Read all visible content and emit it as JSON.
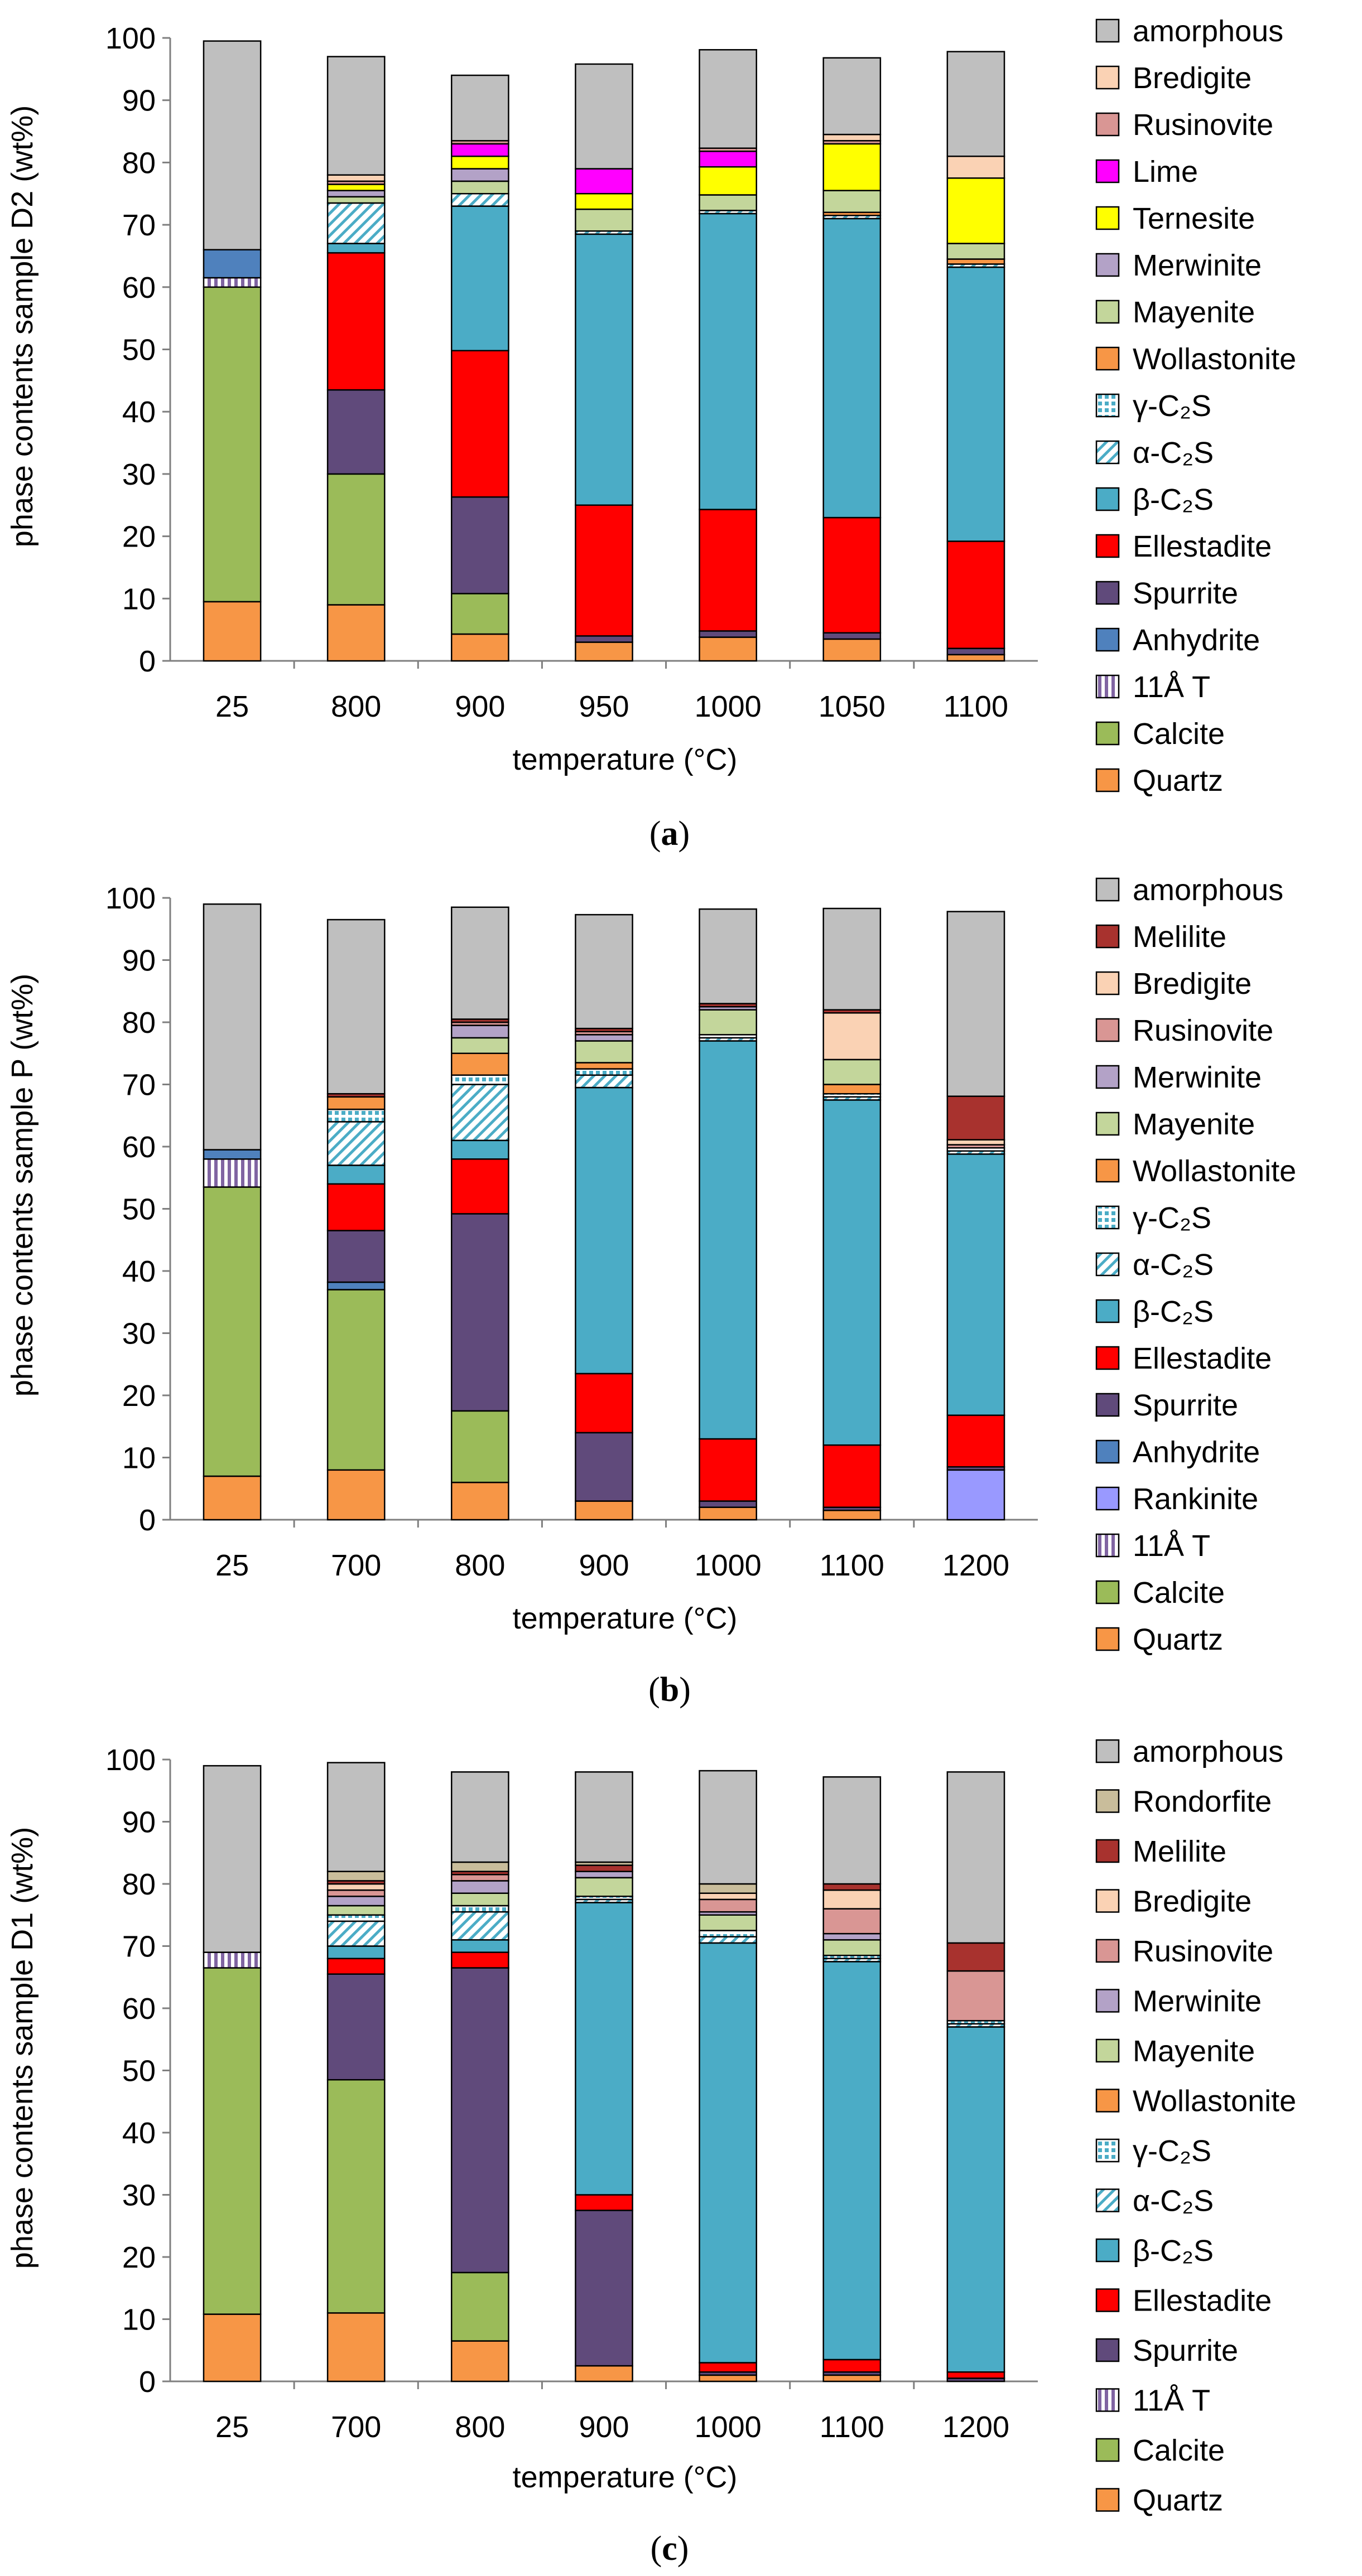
{
  "panels_info": "three stacked-bar charts",
  "chart_data": [
    {
      "type": "bar",
      "stacked": true,
      "panel_label": "a",
      "title": "",
      "xlabel": "temperature (°C)",
      "ylabel": "phase contents sample D2 (wt%)",
      "ylim": [
        0,
        100
      ],
      "yticks": [
        "0",
        "10",
        "20",
        "30",
        "40",
        "50",
        "60",
        "70",
        "80",
        "90",
        "100"
      ],
      "categories": [
        "25",
        "800",
        "900",
        "950",
        "1000",
        "1050",
        "1100"
      ],
      "legend": [
        "amorphous",
        "Bredigite",
        "Rusinovite",
        "Lime",
        "Ternesite",
        "Merwinite",
        "Mayenite",
        "Wollastonite",
        "γ-C₂S",
        "α-C₂S",
        "β-C₂S",
        "Ellestadite",
        "Spurrite",
        "Anhydrite",
        "11Å T",
        "Calcite",
        "Quartz"
      ],
      "series": [
        {
          "name": "Quartz",
          "values": [
            9.5,
            9,
            4.3,
            3,
            3.8,
            3.5,
            1
          ]
        },
        {
          "name": "Calcite",
          "values": [
            50.5,
            21,
            6.5,
            0,
            0,
            0,
            0
          ]
        },
        {
          "name": "11Å T",
          "values": [
            1.5,
            0,
            0,
            0,
            0,
            0,
            0
          ]
        },
        {
          "name": "Anhydrite",
          "values": [
            4.5,
            0,
            0,
            0,
            0,
            0,
            0
          ]
        },
        {
          "name": "Spurrite",
          "values": [
            0,
            13.5,
            15.5,
            1,
            1,
            1,
            1
          ]
        },
        {
          "name": "Ellestadite",
          "values": [
            0,
            22,
            23.5,
            21,
            19.5,
            18.5,
            17.2
          ]
        },
        {
          "name": "β-C₂S",
          "values": [
            0,
            1.5,
            23.2,
            43.5,
            47.5,
            48,
            44
          ]
        },
        {
          "name": "α-C₂S",
          "values": [
            0,
            6.5,
            2,
            0.5,
            0.5,
            0.5,
            0.5
          ]
        },
        {
          "name": "γ-C₂S",
          "values": [
            0,
            0,
            0,
            0,
            0,
            0,
            0
          ]
        },
        {
          "name": "Wollastonite",
          "values": [
            0,
            0,
            0,
            0,
            0,
            0.5,
            0.8
          ]
        },
        {
          "name": "Mayenite",
          "values": [
            0,
            1,
            2,
            3.5,
            2.5,
            3.5,
            2.5
          ]
        },
        {
          "name": "Merwinite",
          "values": [
            0,
            1,
            2,
            0,
            0,
            0,
            0
          ]
        },
        {
          "name": "Ternesite",
          "values": [
            0,
            1,
            2,
            2.5,
            4.5,
            7.5,
            10.5
          ]
        },
        {
          "name": "Lime",
          "values": [
            0,
            0,
            2,
            4,
            2.5,
            0,
            0
          ]
        },
        {
          "name": "Rusinovite",
          "values": [
            0,
            0.5,
            0.5,
            0,
            0.5,
            0.5,
            0
          ]
        },
        {
          "name": "Bredigite",
          "values": [
            0,
            1,
            0,
            0,
            0,
            1,
            3.5
          ]
        },
        {
          "name": "amorphous",
          "values": [
            33.5,
            19,
            10.5,
            16.8,
            15.8,
            12.3,
            16.8
          ]
        }
      ]
    },
    {
      "type": "bar",
      "stacked": true,
      "panel_label": "b",
      "title": "",
      "xlabel": "temperature (°C)",
      "ylabel": "phase contents sample P (wt%)",
      "ylim": [
        0,
        100
      ],
      "yticks": [
        "0",
        "10",
        "20",
        "30",
        "40",
        "50",
        "60",
        "70",
        "80",
        "90",
        "100"
      ],
      "categories": [
        "25",
        "700",
        "800",
        "900",
        "1000",
        "1100",
        "1200"
      ],
      "legend": [
        "amorphous",
        "Melilite",
        "Bredigite",
        "Rusinovite",
        "Merwinite",
        "Mayenite",
        "Wollastonite",
        "γ-C₂S",
        "α-C₂S",
        "β-C₂S",
        "Ellestadite",
        "Spurrite",
        "Anhydrite",
        "Rankinite",
        "11Å T",
        "Calcite",
        "Quartz"
      ],
      "series": [
        {
          "name": "Quartz",
          "values": [
            7,
            8,
            6,
            3,
            2,
            1.5,
            0
          ]
        },
        {
          "name": "Calcite",
          "values": [
            46.5,
            29,
            11.5,
            0,
            0,
            0,
            0
          ]
        },
        {
          "name": "11Å T",
          "values": [
            4.5,
            0,
            0,
            0,
            0,
            0,
            0
          ]
        },
        {
          "name": "Rankinite",
          "values": [
            0,
            0,
            0,
            0,
            0,
            0,
            8
          ]
        },
        {
          "name": "Anhydrite",
          "values": [
            1.5,
            1.2,
            0,
            0,
            0,
            0,
            0
          ]
        },
        {
          "name": "Spurrite",
          "values": [
            0,
            8.3,
            31.7,
            11,
            1,
            0.5,
            0.5
          ]
        },
        {
          "name": "Ellestadite",
          "values": [
            0,
            7.5,
            8.8,
            9.5,
            10,
            10,
            8.3
          ]
        },
        {
          "name": "β-C₂S",
          "values": [
            0,
            3,
            3,
            46,
            64,
            55.5,
            42
          ]
        },
        {
          "name": "α-C₂S",
          "values": [
            0,
            7,
            9,
            2,
            0.5,
            0.5,
            0.5
          ]
        },
        {
          "name": "γ-C₂S",
          "values": [
            0,
            2,
            1.5,
            1,
            0.5,
            0.5,
            0.5
          ]
        },
        {
          "name": "Wollastonite",
          "values": [
            0,
            2,
            3.5,
            1,
            0,
            1.5,
            0
          ]
        },
        {
          "name": "Mayenite",
          "values": [
            0,
            0,
            2.5,
            3.5,
            4,
            4,
            0
          ]
        },
        {
          "name": "Merwinite",
          "values": [
            0,
            0,
            2,
            1,
            0.5,
            0,
            0
          ]
        },
        {
          "name": "Rusinovite",
          "values": [
            0,
            0,
            0.5,
            0.5,
            0,
            0,
            0.5
          ]
        },
        {
          "name": "Bredigite",
          "values": [
            0,
            0,
            0,
            0,
            0,
            7.5,
            0.8
          ]
        },
        {
          "name": "Melilite",
          "values": [
            0,
            0.5,
            0.5,
            0.5,
            0.5,
            0.5,
            7
          ]
        },
        {
          "name": "amorphous",
          "values": [
            39.5,
            28,
            18,
            18.3,
            15.2,
            16.3,
            29.7
          ]
        }
      ]
    },
    {
      "type": "bar",
      "stacked": true,
      "panel_label": "c",
      "title": "",
      "xlabel": "temperature (°C)",
      "ylabel": "phase contents sample D1 (wt%)",
      "ylim": [
        0,
        100
      ],
      "yticks": [
        "0",
        "10",
        "20",
        "30",
        "40",
        "50",
        "60",
        "70",
        "80",
        "90",
        "100"
      ],
      "categories": [
        "25",
        "700",
        "800",
        "900",
        "1000",
        "1100",
        "1200"
      ],
      "legend": [
        "amorphous",
        "Rondorfite",
        "Melilite",
        "Bredigite",
        "Rusinovite",
        "Merwinite",
        "Mayenite",
        "Wollastonite",
        "γ-C₂S",
        "α-C₂S",
        "β-C₂S",
        "Ellestadite",
        "Spurrite",
        "11Å T",
        "Calcite",
        "Quartz"
      ],
      "series": [
        {
          "name": "Quartz",
          "values": [
            10.8,
            11,
            6.5,
            2.5,
            1,
            1,
            0
          ]
        },
        {
          "name": "Calcite",
          "values": [
            55.7,
            37.5,
            11,
            0,
            0,
            0,
            0
          ]
        },
        {
          "name": "11Å T",
          "values": [
            2.5,
            0,
            0,
            0,
            0,
            0,
            0
          ]
        },
        {
          "name": "Spurrite",
          "values": [
            0,
            17,
            49,
            25,
            0.5,
            0.5,
            0.5
          ]
        },
        {
          "name": "Ellestadite",
          "values": [
            0,
            2.5,
            2.5,
            2.5,
            1.5,
            2,
            1
          ]
        },
        {
          "name": "β-C₂S",
          "values": [
            0,
            2,
            2,
            47,
            67.5,
            64,
            55.5
          ]
        },
        {
          "name": "α-C₂S",
          "values": [
            0,
            4,
            4.5,
            0.5,
            1,
            0.5,
            0.5
          ]
        },
        {
          "name": "γ-C₂S",
          "values": [
            0,
            1,
            1,
            0.5,
            1,
            0.5,
            0.5
          ]
        },
        {
          "name": "Wollastonite",
          "values": [
            0,
            0,
            0,
            0,
            0,
            0,
            0
          ]
        },
        {
          "name": "Mayenite",
          "values": [
            0,
            1.5,
            2,
            3,
            2.5,
            2.5,
            0
          ]
        },
        {
          "name": "Merwinite",
          "values": [
            0,
            1.5,
            2,
            1,
            0.5,
            1,
            0
          ]
        },
        {
          "name": "Rusinovite",
          "values": [
            0,
            1,
            1,
            0,
            2,
            4,
            8
          ]
        },
        {
          "name": "Bredigite",
          "values": [
            0,
            1,
            0,
            0,
            1,
            3,
            0
          ]
        },
        {
          "name": "Melilite",
          "values": [
            0,
            0.5,
            0.5,
            1,
            0,
            1,
            4.5
          ]
        },
        {
          "name": "Rondorfite",
          "values": [
            0,
            1.5,
            1.5,
            0.5,
            1.5,
            0,
            0
          ]
        },
        {
          "name": "amorphous",
          "values": [
            30,
            17.5,
            14.5,
            14.5,
            18.2,
            17.2,
            27.5
          ]
        }
      ]
    }
  ],
  "colors": {
    "amorphous": "#BFBFBF",
    "Rondorfite": "#C9BD9B",
    "Melilite": "#A8322E",
    "Bredigite": "#FAD2B4",
    "Rusinovite": "#D99694",
    "Lime": "#FF00FF",
    "Ternesite": "#FFFF00",
    "Merwinite": "#B3A2C7",
    "Mayenite": "#C3D69B",
    "Wollastonite": "#F79646",
    "γ-C₂S": "#4BACC6",
    "α-C₂S": "#4BACC6",
    "β-C₂S": "#4BACC6",
    "Ellestadite": "#FF0000",
    "Spurrite": "#604A7B",
    "Anhydrite": "#4F81BD",
    "Rankinite": "#9999FF",
    "11Å T": "#8064A2",
    "Calcite": "#9BBB59",
    "Quartz": "#F79646"
  },
  "patterns": {
    "γ-C₂S": "dots",
    "α-C₂S": "diag",
    "11Å T": "vlines"
  }
}
